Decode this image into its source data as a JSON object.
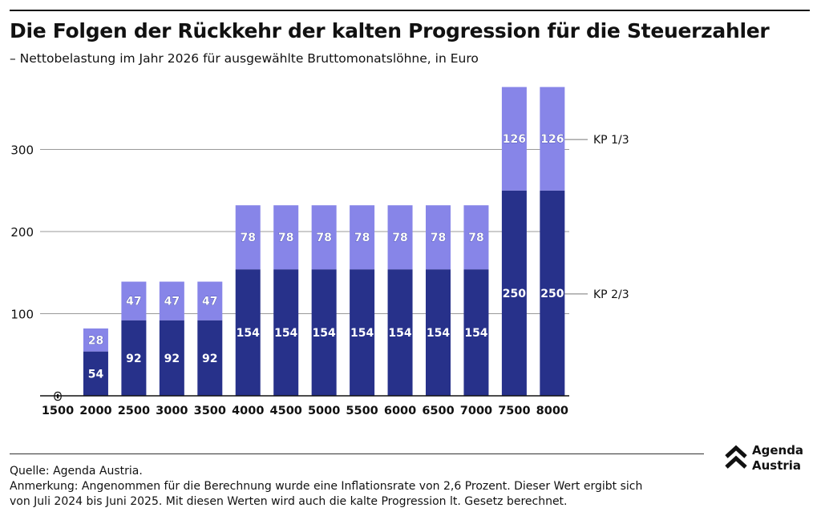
{
  "title": "Die Folgen der Rückkehr der kalten Progression für die Steuerzahler",
  "subtitle": "– Nettobelastung im Jahr 2026 für ausgewählte Bruttomonatslöhne, in Euro",
  "chart_data": {
    "type": "bar",
    "stacked": true,
    "categories": [
      "1500",
      "2000",
      "2500",
      "3000",
      "3500",
      "4000",
      "4500",
      "5000",
      "5500",
      "6000",
      "6500",
      "7000",
      "7500",
      "8000"
    ],
    "series": [
      {
        "name": "KP 2/3",
        "color": "#27318a",
        "values": [
          0,
          54,
          92,
          92,
          92,
          154,
          154,
          154,
          154,
          154,
          154,
          154,
          250,
          250
        ]
      },
      {
        "name": "KP 1/3",
        "color": "#8785e8",
        "values": [
          0,
          28,
          47,
          47,
          47,
          78,
          78,
          78,
          78,
          78,
          78,
          78,
          126,
          126
        ]
      }
    ],
    "yticks": [
      "100",
      "200",
      "300"
    ],
    "ylim": [
      0,
      375
    ],
    "grid": true,
    "legend": "right"
  },
  "footer": {
    "source": "Quelle: Agenda Austria.",
    "note1": "Anmerkung: Angenommen für die Berechnung wurde eine Inflationsrate von 2,6 Prozent. Dieser Wert ergibt sich",
    "note2": "von Juli 2024 bis Juni 2025. Mit diesen Werten wird auch die kalte Progression lt. Gesetz berechnet."
  },
  "logo": {
    "line1": "Agenda",
    "line2": "Austria"
  }
}
